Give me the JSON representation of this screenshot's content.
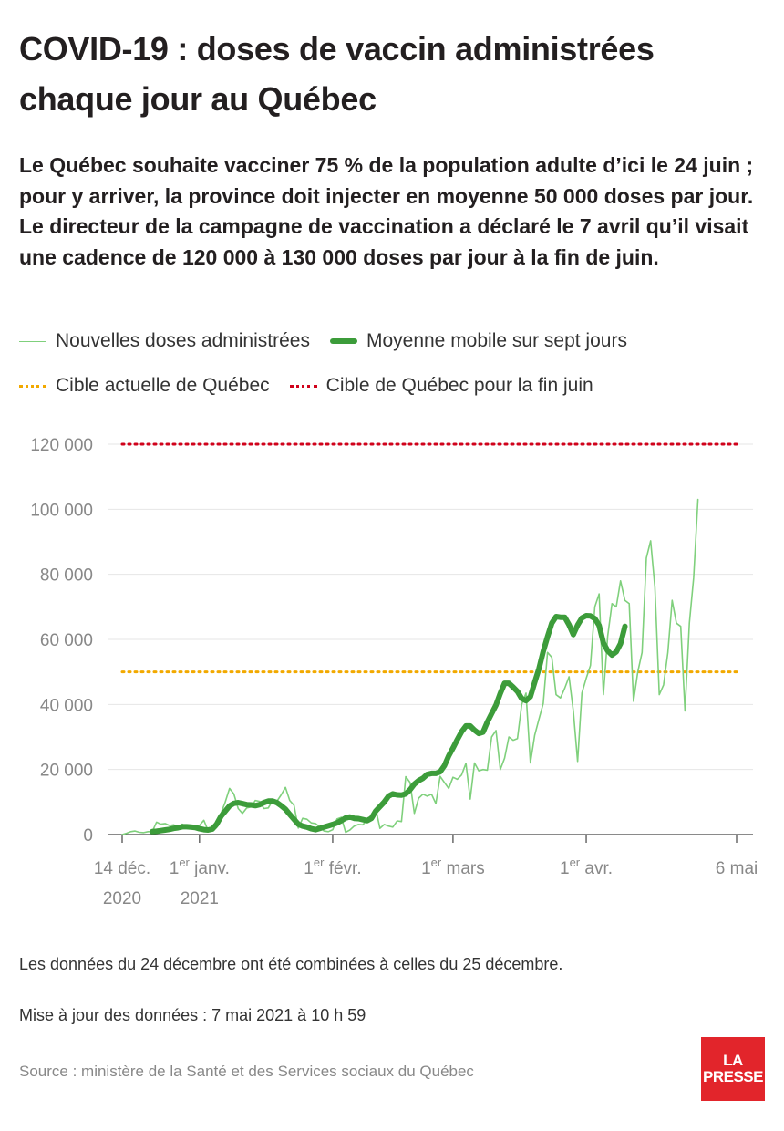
{
  "title": "COVID-19 : doses de vaccin administrées chaque jour au Québec",
  "subtitle": "Le Québec souhaite vacciner 75 % de la population adulte d’ici le 24 juin ; pour y arriver, la province doit injecter en moyenne 50 000 doses par jour. Le directeur de la campagne de vaccination a déclaré le 7 avril qu’il visait une cadence de 120 000 à 130 000 doses par jour à la fin de juin.",
  "legend": {
    "daily": "Nouvelles doses administrées",
    "avg": "Moyenne mobile sur sept jours",
    "current_target": "Cible actuelle de Québec",
    "june_target": "Cible de Québec pour la fin juin"
  },
  "notes": {
    "combined": "Les données du 24 décembre ont été combinées à celles du 25 décembre.",
    "updated": "Mise à jour des données : 7 mai 2021 à 10 h 59",
    "source": "Source : ministère de la Santé et des Services sociaux du Québec"
  },
  "logo": {
    "line1": "LA",
    "line2": "PRESSE"
  },
  "colors": {
    "daily": "#7fd07c",
    "avg": "#3c9c3a",
    "current_target": "#f2a900",
    "june_target": "#d0021b",
    "axis": "#888888",
    "grid": "#e6e6e6"
  },
  "chart_data": {
    "type": "line",
    "x_start": "2020-12-14",
    "x_end": "2021-05-06",
    "ylim": [
      0,
      120000
    ],
    "y_ticks": [
      0,
      20000,
      40000,
      60000,
      80000,
      100000,
      120000
    ],
    "y_tick_labels": [
      "0",
      "20 000",
      "40 000",
      "60 000",
      "80 000",
      "100 000",
      "120 000"
    ],
    "x_ticks": [
      {
        "date": "2020-12-14",
        "label": "14 déc.",
        "label2": "2020",
        "sup": ""
      },
      {
        "date": "2021-01-01",
        "label": "1",
        "sup": "er",
        "label_rest": " janv.",
        "label2": "2021"
      },
      {
        "date": "2021-02-01",
        "label": "1",
        "sup": "er",
        "label_rest": " févr.",
        "label2": ""
      },
      {
        "date": "2021-03-01",
        "label": "1",
        "sup": "er",
        "label_rest": " mars",
        "label2": ""
      },
      {
        "date": "2021-04-01",
        "label": "1",
        "sup": "er",
        "label_rest": " avr.",
        "label2": ""
      },
      {
        "date": "2021-05-06",
        "label": "6 mai",
        "sup": "",
        "label2": ""
      }
    ],
    "targets": [
      {
        "name": "Cible actuelle de Québec",
        "value": 50000
      },
      {
        "name": "Cible de Québec pour la fin juin",
        "value": 120000
      }
    ],
    "series": [
      {
        "name": "Nouvelles doses administrées",
        "start": "2020-12-14",
        "values": [
          0,
          400,
          900,
          1100,
          700,
          600,
          900,
          900,
          3800,
          3200,
          3400,
          2800,
          3000,
          2400,
          3200,
          2300,
          1900,
          2100,
          2800,
          4400,
          1200,
          1200,
          2200,
          6500,
          10000,
          14200,
          12500,
          8000,
          6500,
          8200,
          8500,
          10500,
          10200,
          8000,
          8200,
          10500,
          10200,
          12200,
          14500,
          10500,
          9000,
          2000,
          5000,
          4700,
          3600,
          3400,
          2300,
          1100,
          900,
          1500,
          4800,
          5300,
          700,
          1400,
          2600,
          3100,
          3000,
          4500,
          4600,
          8000,
          1900,
          3100,
          2600,
          2300,
          4200,
          4000,
          17800,
          16000,
          6500,
          11200,
          12400,
          11800,
          12400,
          9500,
          17900,
          16000,
          14200,
          17600,
          17000,
          18300,
          21900,
          10900,
          22000,
          19600,
          20000,
          19800,
          30000,
          32000,
          20000,
          23500,
          30000,
          29000,
          29500,
          40000,
          43500,
          22000,
          30500,
          35500,
          40300,
          56000,
          54500,
          43000,
          42000,
          45000,
          48500,
          38000,
          22500,
          43500,
          48000,
          52000,
          70000,
          74000,
          43000,
          61000,
          71000,
          70000,
          78000,
          72000,
          71000,
          41000,
          50000,
          56000,
          85000,
          90300,
          76000,
          43000,
          46000,
          56000,
          72000,
          65000,
          64000,
          38000,
          65000,
          79000,
          103000
        ]
      },
      {
        "name": "Moyenne mobile sur sept jours",
        "start": "2020-12-21",
        "values": [
          900,
          1000,
          1200,
          1400,
          1600,
          1900,
          2100,
          2400,
          2400,
          2300,
          2200,
          1800,
          1500,
          1400,
          1700,
          3200,
          5600,
          7200,
          8800,
          9600,
          9800,
          9500,
          9200,
          9100,
          8900,
          9200,
          9800,
          10300,
          10300,
          9800,
          8900,
          7800,
          6200,
          4700,
          3200,
          2600,
          2300,
          1800,
          1500,
          1900,
          2300,
          2700,
          3100,
          3600,
          4300,
          5100,
          5400,
          5000,
          4900,
          4600,
          4300,
          5000,
          7200,
          8600,
          10000,
          11800,
          12500,
          12200,
          12100,
          12500,
          13800,
          15500,
          16600,
          17300,
          18500,
          18800,
          18800,
          19300,
          21200,
          24200,
          26600,
          29200,
          31600,
          33400,
          33400,
          32100,
          31100,
          31500,
          34600,
          37200,
          39800,
          43400,
          46500,
          46500,
          45300,
          44000,
          41800,
          41200,
          42400,
          46800,
          51000,
          56300,
          60800,
          65000,
          67000,
          66800,
          66800,
          64500,
          61500,
          64400,
          66600,
          67300,
          67200,
          66400,
          64300,
          58900,
          56500,
          55200,
          56200,
          58700,
          64000
        ]
      }
    ]
  }
}
